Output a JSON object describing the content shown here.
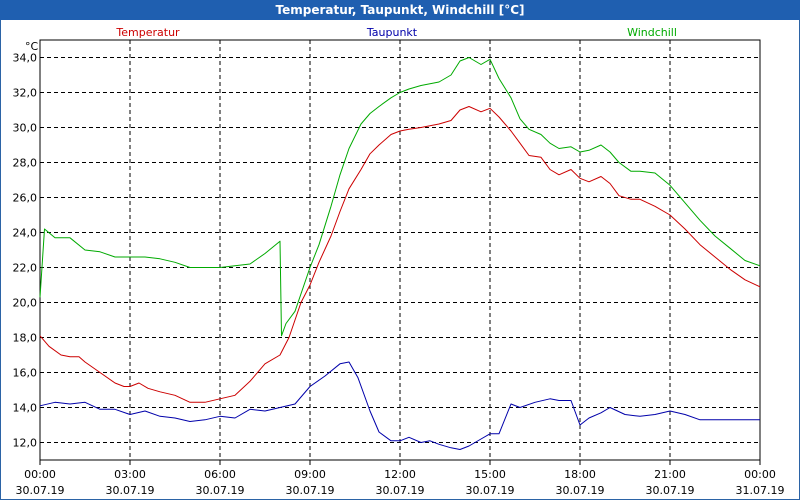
{
  "window": {
    "title": "Temperatur, Taupunkt, Windchill [°C]"
  },
  "chart_data": {
    "type": "line",
    "title": "Temperatur, Taupunkt, Windchill [°C]",
    "ylabel": "°C",
    "xlabel": "",
    "ylim": [
      11,
      35
    ],
    "xlim": [
      0,
      24
    ],
    "grid": true,
    "legend_placement": "top",
    "y_ticks": [
      "12,0",
      "14,0",
      "16,0",
      "18,0",
      "20,0",
      "22,0",
      "24,0",
      "26,0",
      "28,0",
      "30,0",
      "32,0",
      "34,0"
    ],
    "y_tick_values": [
      12,
      14,
      16,
      18,
      20,
      22,
      24,
      26,
      28,
      30,
      32,
      34
    ],
    "x_ticks": [
      {
        "time": "00:00",
        "date": "30.07.19",
        "hour": 0
      },
      {
        "time": "03:00",
        "date": "30.07.19",
        "hour": 3
      },
      {
        "time": "06:00",
        "date": "30.07.19",
        "hour": 6
      },
      {
        "time": "09:00",
        "date": "30.07.19",
        "hour": 9
      },
      {
        "time": "12:00",
        "date": "30.07.19",
        "hour": 12
      },
      {
        "time": "15:00",
        "date": "30.07.19",
        "hour": 15
      },
      {
        "time": "18:00",
        "date": "30.07.19",
        "hour": 18
      },
      {
        "time": "21:00",
        "date": "30.07.19",
        "hour": 21
      },
      {
        "time": "00:00",
        "date": "31.07.19",
        "hour": 24
      }
    ],
    "series": [
      {
        "name": "Temperatur",
        "color": "#cc0000",
        "x": [
          0,
          0.3,
          0.7,
          1,
          1.3,
          1.5,
          2,
          2.5,
          2.8,
          3,
          3.3,
          3.6,
          4,
          4.5,
          5,
          5.5,
          6,
          6.5,
          7,
          7.5,
          8,
          8.3,
          8.7,
          9,
          9.3,
          9.7,
          10,
          10.3,
          10.7,
          11,
          11.3,
          11.7,
          12,
          12.3,
          12.7,
          13,
          13.3,
          13.7,
          14,
          14.3,
          14.7,
          15,
          15.3,
          15.7,
          16,
          16.3,
          16.7,
          17,
          17.3,
          17.7,
          18,
          18.3,
          18.7,
          19,
          19.3,
          19.7,
          20,
          20.5,
          21,
          21.5,
          22,
          22.5,
          23,
          23.5,
          24
        ],
        "values": [
          18.1,
          17.5,
          17.0,
          16.9,
          16.9,
          16.6,
          16.0,
          15.4,
          15.2,
          15.2,
          15.4,
          15.1,
          14.9,
          14.7,
          14.3,
          14.3,
          14.5,
          14.7,
          15.5,
          16.5,
          17.0,
          18.0,
          20.0,
          21.0,
          22.3,
          23.8,
          25.2,
          26.5,
          27.6,
          28.5,
          29.0,
          29.6,
          29.8,
          29.9,
          30.0,
          30.1,
          30.2,
          30.4,
          31.0,
          31.2,
          30.9,
          31.1,
          30.6,
          29.8,
          29.1,
          28.4,
          28.3,
          27.6,
          27.3,
          27.6,
          27.1,
          26.9,
          27.2,
          26.8,
          26.1,
          25.9,
          25.9,
          25.5,
          25.0,
          24.2,
          23.3,
          22.6,
          21.9,
          21.3,
          20.9
        ]
      },
      {
        "name": "Taupunkt",
        "color": "#0000aa",
        "x": [
          0,
          0.5,
          1,
          1.5,
          2,
          2.5,
          3,
          3.5,
          4,
          4.5,
          5,
          5.5,
          6,
          6.5,
          7,
          7.5,
          8,
          8.5,
          9,
          9.5,
          10,
          10.3,
          10.6,
          11,
          11.3,
          11.7,
          12,
          12.3,
          12.7,
          13,
          13.3,
          13.7,
          14,
          14.3,
          14.7,
          15,
          15.3,
          15.7,
          16,
          16.5,
          17,
          17.3,
          17.7,
          18,
          18.3,
          18.7,
          19,
          19.5,
          20,
          20.5,
          21,
          21.5,
          22,
          22.5,
          23,
          23.5,
          24
        ],
        "values": [
          14.1,
          14.3,
          14.2,
          14.3,
          13.9,
          13.9,
          13.6,
          13.8,
          13.5,
          13.4,
          13.2,
          13.3,
          13.5,
          13.4,
          13.9,
          13.8,
          14.0,
          14.2,
          15.2,
          15.8,
          16.5,
          16.6,
          15.7,
          13.8,
          12.6,
          12.1,
          12.1,
          12.3,
          12.0,
          12.1,
          11.9,
          11.7,
          11.6,
          11.8,
          12.2,
          12.5,
          12.5,
          14.2,
          14.0,
          14.3,
          14.5,
          14.4,
          14.4,
          13.0,
          13.4,
          13.7,
          14.0,
          13.6,
          13.5,
          13.6,
          13.8,
          13.6,
          13.3,
          13.3,
          13.3,
          13.3,
          13.3
        ]
      },
      {
        "name": "Windchill",
        "color": "#00aa00",
        "x": [
          0,
          0.15,
          0.5,
          1,
          1.5,
          2,
          2.5,
          3,
          3.5,
          4,
          4.5,
          5,
          5.5,
          6,
          6.5,
          7,
          7.5,
          8,
          8.05,
          8.2,
          8.5,
          9,
          9.3,
          9.7,
          10,
          10.3,
          10.7,
          11,
          11.3,
          11.7,
          12,
          12.3,
          12.7,
          13,
          13.3,
          13.7,
          14,
          14.3,
          14.7,
          15,
          15.3,
          15.7,
          16,
          16.3,
          16.7,
          17,
          17.3,
          17.7,
          18,
          18.3,
          18.7,
          19,
          19.3,
          19.7,
          20,
          20.5,
          21,
          21.5,
          22,
          22.5,
          23,
          23.5,
          24
        ],
        "values": [
          20.3,
          24.2,
          23.7,
          23.7,
          23.0,
          22.9,
          22.6,
          22.6,
          22.6,
          22.5,
          22.3,
          22.0,
          22.0,
          22.0,
          22.1,
          22.2,
          22.8,
          23.5,
          18.1,
          18.8,
          19.5,
          22.0,
          23.3,
          25.5,
          27.3,
          28.8,
          30.2,
          30.8,
          31.2,
          31.7,
          32.0,
          32.2,
          32.4,
          32.5,
          32.6,
          33.0,
          33.8,
          34.0,
          33.6,
          33.9,
          32.8,
          31.7,
          30.5,
          29.9,
          29.6,
          29.1,
          28.8,
          28.9,
          28.6,
          28.7,
          29.0,
          28.6,
          28.0,
          27.5,
          27.5,
          27.4,
          26.7,
          25.7,
          24.7,
          23.8,
          23.1,
          22.4,
          22.1
        ]
      }
    ]
  }
}
